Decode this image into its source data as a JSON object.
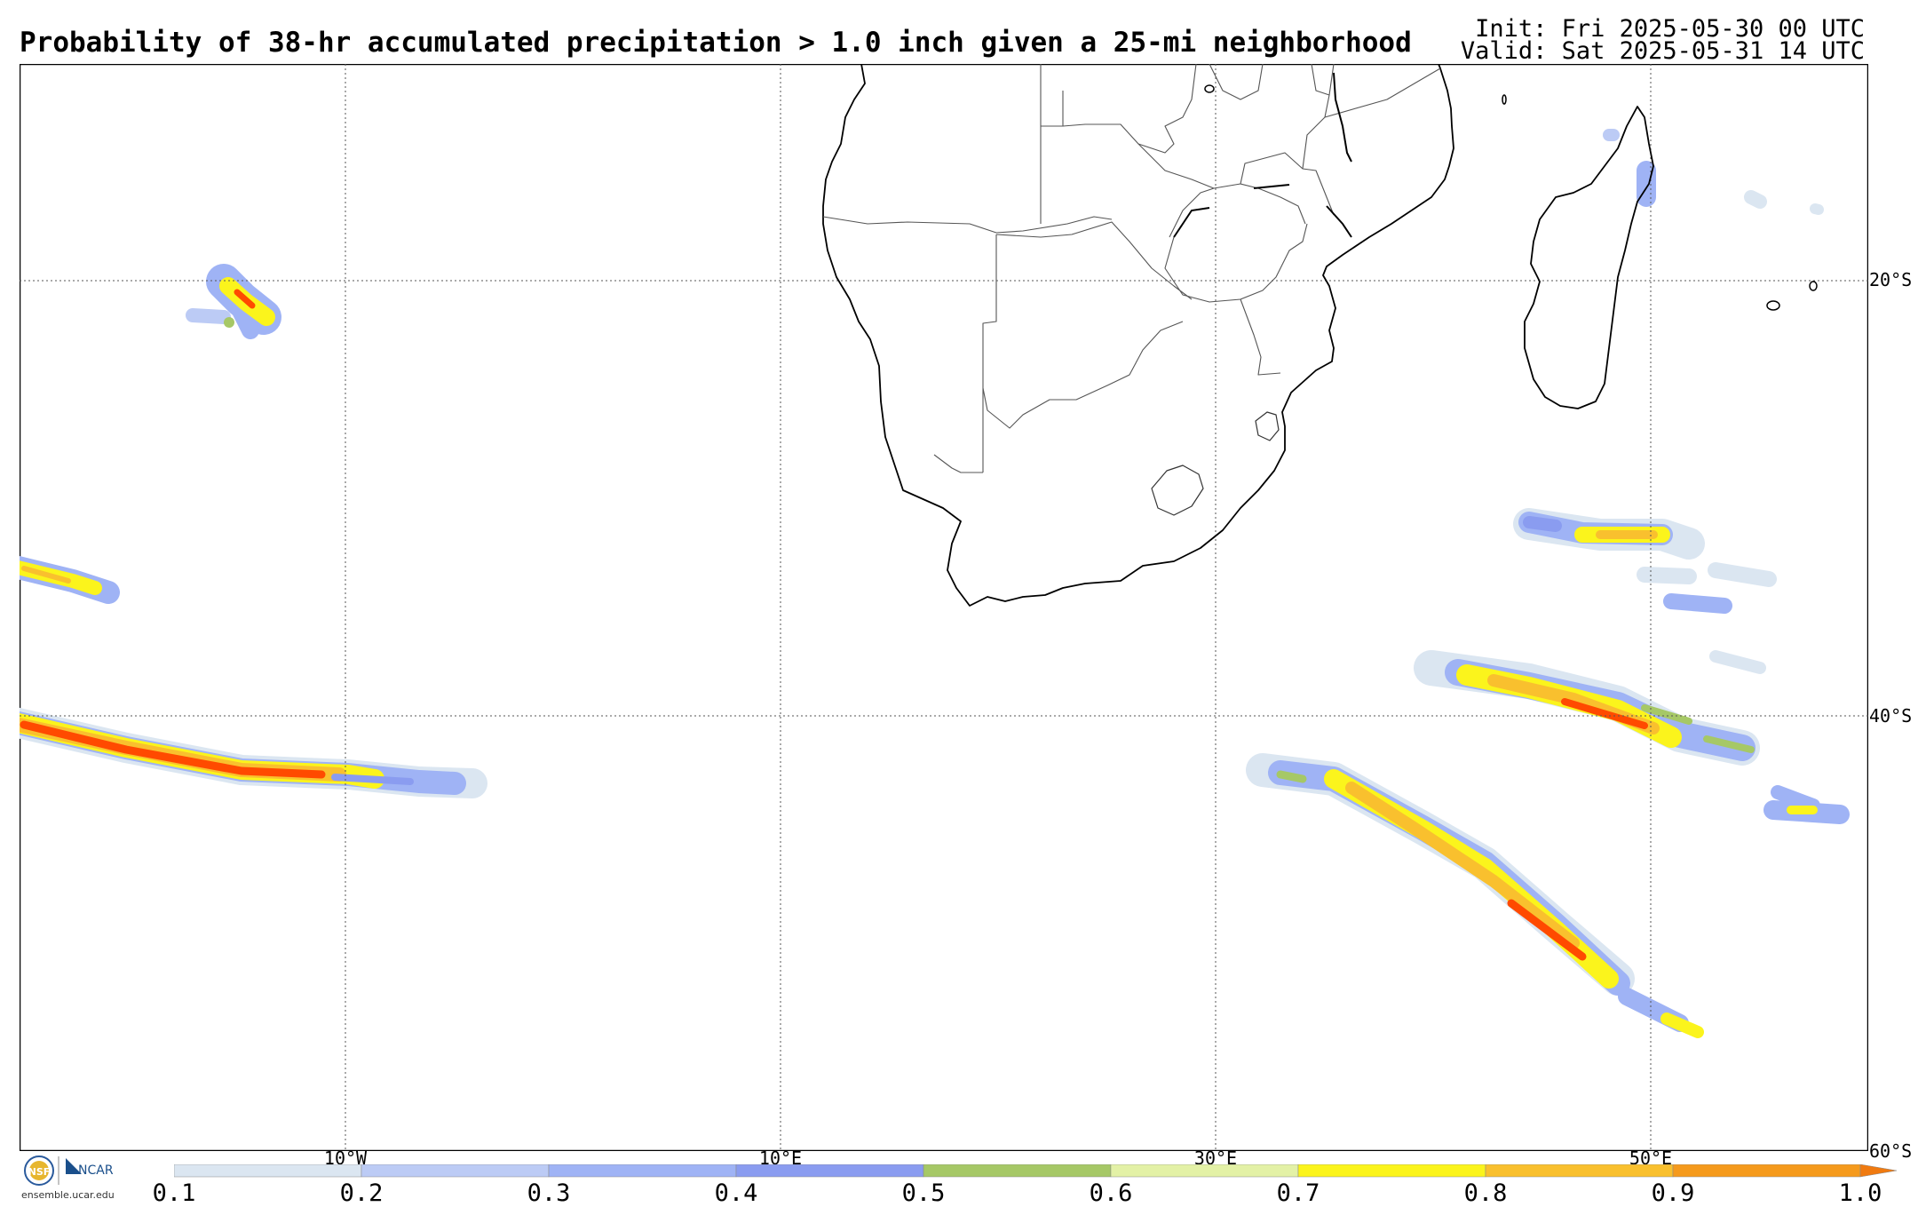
{
  "header": {
    "title": "Probability of 38-hr accumulated precipitation > 1.0 inch given a 25-mi neighborhood",
    "init": "Init: Fri 2025-05-30 00 UTC",
    "valid": "Valid: Sat 2025-05-31 14 UTC"
  },
  "map": {
    "region": "Southern Africa and South Atlantic / Indian Ocean",
    "gridlines": "dotted",
    "longitude_labels": [
      "10°W",
      "10°E",
      "30°E",
      "50°E"
    ],
    "latitude_labels": [
      "20°S",
      "40°S",
      "60°S"
    ]
  },
  "colorbar": {
    "tick_labels": [
      "0.1",
      "0.2",
      "0.3",
      "0.4",
      "0.5",
      "0.6",
      "0.7",
      "0.8",
      "0.9",
      "1.0"
    ],
    "colors": [
      "#dbe6f1",
      "#bccbf5",
      "#9fb3f5",
      "#8a9cf0",
      "#a6c866",
      "#e3f1a6",
      "#fbf41c",
      "#f9c02e",
      "#f59a1c",
      "#f07a10"
    ]
  },
  "logos": {
    "nsf": "NSF",
    "ncar": "NCAR",
    "url": "ensemble.ucar.edu"
  },
  "colors": {
    "coast": "#000000",
    "border": "#555555",
    "prob_low": "#dbe6f1",
    "prob_blue": "#8a9cf0",
    "prob_green": "#a6c866",
    "prob_yellow": "#fbf41c",
    "prob_orange": "#f59a1c",
    "prob_red": "#ff4a00"
  }
}
